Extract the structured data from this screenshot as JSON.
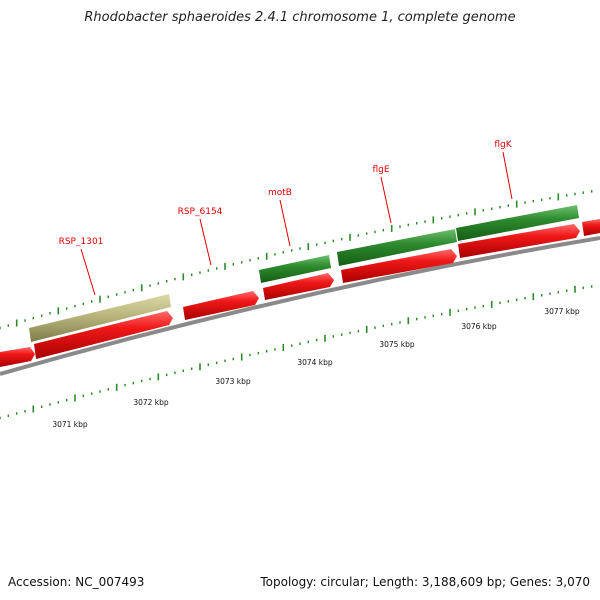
{
  "title": "Rhodobacter sphaeroides 2.4.1 chromosome 1, complete genome",
  "footer": {
    "accession": "Accession: NC_007493",
    "stats": "Topology: circular; Length: 3,188,609 bp; Genes: 3,070"
  },
  "colors": {
    "cds_forward": "#e01010",
    "gene_green": "#2e8b2e",
    "gene_khaki": "#b9b57c",
    "backbone": "#8a8a8a",
    "tick": "#2a8a2a",
    "label": "#e00000"
  },
  "scale": {
    "labels": [
      "3071 kbp",
      "3072 kbp",
      "3073 kbp",
      "3074 kbp",
      "3075 kbp",
      "3076 kbp",
      "3077 kbp"
    ]
  },
  "genes": [
    {
      "name": "RSP_1301"
    },
    {
      "name": "RSP_6154"
    },
    {
      "name": "motB"
    },
    {
      "name": "flgE"
    },
    {
      "name": "flgK"
    }
  ]
}
